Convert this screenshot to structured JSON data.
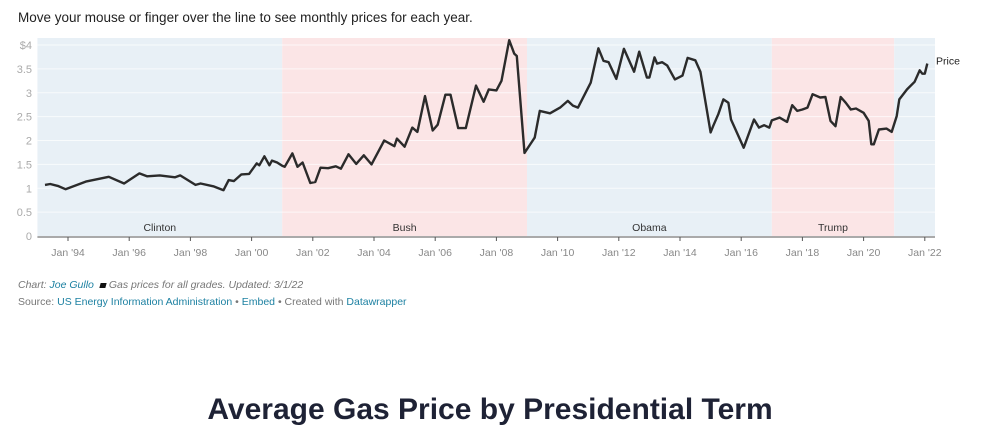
{
  "intro": "Move your mouse or finger over the line to see monthly prices for each year.",
  "notes": {
    "chart_prefix": "Chart:",
    "author": "Joe Gullo",
    "legend_note": "Gas prices for all grades. Updated: 3/1/22",
    "source_prefix": "Source:",
    "source": "US Energy Information Administration",
    "sep": "•",
    "embed": "Embed",
    "created_with": "Created with",
    "tool": "Datawrapper"
  },
  "heading": "Average Gas Price by Presidential Term",
  "colors": {
    "line": "#2b2b2b",
    "democrat_band": "#e8f0f6",
    "republican_band": "#fbe5e6",
    "link": "#1d81a2"
  },
  "chart_data": {
    "type": "line",
    "series": [
      {
        "name": "Price",
        "points": [
          [
            "1993-04",
            1.07
          ],
          [
            "1993-06",
            1.09
          ],
          [
            "1993-09",
            1.05
          ],
          [
            "1993-12",
            0.98
          ],
          [
            "1994-08",
            1.14
          ],
          [
            "1995-05",
            1.24
          ],
          [
            "1995-11",
            1.1
          ],
          [
            "1996-05",
            1.31
          ],
          [
            "1996-08",
            1.25
          ],
          [
            "1997-01",
            1.27
          ],
          [
            "1997-07",
            1.23
          ],
          [
            "1997-09",
            1.27
          ],
          [
            "1998-03",
            1.07
          ],
          [
            "1998-05",
            1.1
          ],
          [
            "1998-10",
            1.04
          ],
          [
            "1999-02",
            0.96
          ],
          [
            "1999-04",
            1.17
          ],
          [
            "1999-06",
            1.15
          ],
          [
            "1999-09",
            1.29
          ],
          [
            "1999-12",
            1.3
          ],
          [
            "2000-03",
            1.52
          ],
          [
            "2000-04",
            1.48
          ],
          [
            "2000-06",
            1.67
          ],
          [
            "2000-08",
            1.48
          ],
          [
            "2000-09",
            1.58
          ],
          [
            "2000-11",
            1.54
          ],
          [
            "2001-01",
            1.47
          ],
          [
            "2001-02",
            1.45
          ],
          [
            "2001-05",
            1.73
          ],
          [
            "2001-07",
            1.45
          ],
          [
            "2001-09",
            1.54
          ],
          [
            "2001-12",
            1.11
          ],
          [
            "2002-02",
            1.13
          ],
          [
            "2002-04",
            1.43
          ],
          [
            "2002-07",
            1.42
          ],
          [
            "2002-10",
            1.46
          ],
          [
            "2002-12",
            1.41
          ],
          [
            "2003-03",
            1.71
          ],
          [
            "2003-06",
            1.51
          ],
          [
            "2003-09",
            1.69
          ],
          [
            "2003-12",
            1.5
          ],
          [
            "2004-05",
            2.0
          ],
          [
            "2004-09",
            1.88
          ],
          [
            "2004-10",
            2.04
          ],
          [
            "2005-01",
            1.87
          ],
          [
            "2005-04",
            2.27
          ],
          [
            "2005-06",
            2.18
          ],
          [
            "2005-09",
            2.93
          ],
          [
            "2005-12",
            2.21
          ],
          [
            "2006-02",
            2.33
          ],
          [
            "2006-05",
            2.96
          ],
          [
            "2006-07",
            2.96
          ],
          [
            "2006-10",
            2.26
          ],
          [
            "2007-01",
            2.26
          ],
          [
            "2007-05",
            3.15
          ],
          [
            "2007-08",
            2.81
          ],
          [
            "2007-10",
            3.07
          ],
          [
            "2008-01",
            3.05
          ],
          [
            "2008-03",
            3.25
          ],
          [
            "2008-06",
            4.1
          ],
          [
            "2008-08",
            3.82
          ],
          [
            "2008-09",
            3.77
          ],
          [
            "2008-12",
            1.74
          ],
          [
            "2009-03",
            1.98
          ],
          [
            "2009-04",
            2.06
          ],
          [
            "2009-06",
            2.62
          ],
          [
            "2009-10",
            2.57
          ],
          [
            "2010-02",
            2.69
          ],
          [
            "2010-05",
            2.83
          ],
          [
            "2010-07",
            2.73
          ],
          [
            "2010-09",
            2.69
          ],
          [
            "2011-02",
            3.21
          ],
          [
            "2011-05",
            3.93
          ],
          [
            "2011-07",
            3.67
          ],
          [
            "2011-09",
            3.64
          ],
          [
            "2011-12",
            3.29
          ],
          [
            "2012-03",
            3.92
          ],
          [
            "2012-07",
            3.44
          ],
          [
            "2012-09",
            3.86
          ],
          [
            "2012-12",
            3.32
          ],
          [
            "2013-01",
            3.32
          ],
          [
            "2013-03",
            3.74
          ],
          [
            "2013-04",
            3.61
          ],
          [
            "2013-06",
            3.64
          ],
          [
            "2013-08",
            3.57
          ],
          [
            "2013-11",
            3.28
          ],
          [
            "2014-02",
            3.36
          ],
          [
            "2014-04",
            3.73
          ],
          [
            "2014-07",
            3.68
          ],
          [
            "2014-09",
            3.44
          ],
          [
            "2015-01",
            2.17
          ],
          [
            "2015-02",
            2.3
          ],
          [
            "2015-04",
            2.55
          ],
          [
            "2015-06",
            2.86
          ],
          [
            "2015-08",
            2.79
          ],
          [
            "2015-09",
            2.44
          ],
          [
            "2016-02",
            1.85
          ],
          [
            "2016-06",
            2.44
          ],
          [
            "2016-08",
            2.27
          ],
          [
            "2016-10",
            2.32
          ],
          [
            "2016-12",
            2.27
          ],
          [
            "2017-01",
            2.42
          ],
          [
            "2017-04",
            2.48
          ],
          [
            "2017-07",
            2.39
          ],
          [
            "2017-09",
            2.74
          ],
          [
            "2017-11",
            2.62
          ],
          [
            "2018-01",
            2.65
          ],
          [
            "2018-03",
            2.69
          ],
          [
            "2018-05",
            2.97
          ],
          [
            "2018-08",
            2.9
          ],
          [
            "2018-10",
            2.91
          ],
          [
            "2018-12",
            2.41
          ],
          [
            "2019-02",
            2.3
          ],
          [
            "2019-04",
            2.91
          ],
          [
            "2019-06",
            2.79
          ],
          [
            "2019-08",
            2.65
          ],
          [
            "2019-10",
            2.67
          ],
          [
            "2020-01",
            2.58
          ],
          [
            "2020-03",
            2.41
          ],
          [
            "2020-04",
            1.92
          ],
          [
            "2020-05",
            1.92
          ],
          [
            "2020-07",
            2.23
          ],
          [
            "2020-10",
            2.25
          ],
          [
            "2020-12",
            2.18
          ],
          [
            "2021-02",
            2.51
          ],
          [
            "2021-03",
            2.86
          ],
          [
            "2021-06",
            3.07
          ],
          [
            "2021-09",
            3.23
          ],
          [
            "2021-11",
            3.47
          ],
          [
            "2021-12",
            3.4
          ],
          [
            "2022-01",
            3.4
          ],
          [
            "2022-02",
            3.61
          ]
        ]
      }
    ],
    "xlim": [
      "1993-01",
      "2022-05"
    ],
    "ylim": [
      0,
      4
    ],
    "yticks": [
      {
        "v": 0,
        "label": "0"
      },
      {
        "v": 0.5,
        "label": "0.5"
      },
      {
        "v": 1,
        "label": "1"
      },
      {
        "v": 1.5,
        "label": "1.5"
      },
      {
        "v": 2,
        "label": "2"
      },
      {
        "v": 2.5,
        "label": "2.5"
      },
      {
        "v": 3,
        "label": "3"
      },
      {
        "v": 3.5,
        "label": "3.5"
      },
      {
        "v": 4,
        "label": "$4"
      }
    ],
    "xticks": [
      {
        "v": "1994-01",
        "label": "Jan '94"
      },
      {
        "v": "1996-01",
        "label": "Jan '96"
      },
      {
        "v": "1998-01",
        "label": "Jan '98"
      },
      {
        "v": "2000-01",
        "label": "Jan '00"
      },
      {
        "v": "2002-01",
        "label": "Jan '02"
      },
      {
        "v": "2004-01",
        "label": "Jan '04"
      },
      {
        "v": "2006-01",
        "label": "Jan '06"
      },
      {
        "v": "2008-01",
        "label": "Jan '08"
      },
      {
        "v": "2010-01",
        "label": "Jan '10"
      },
      {
        "v": "2012-01",
        "label": "Jan '12"
      },
      {
        "v": "2014-01",
        "label": "Jan '14"
      },
      {
        "v": "2016-01",
        "label": "Jan '16"
      },
      {
        "v": "2018-01",
        "label": "Jan '18"
      },
      {
        "v": "2020-01",
        "label": "Jan '20"
      },
      {
        "v": "2022-01",
        "label": "Jan '22"
      }
    ],
    "bands": [
      {
        "label": "Clinton",
        "start": "1993-01",
        "end": "2001-01",
        "party": "democrat"
      },
      {
        "label": "Bush",
        "start": "2001-01",
        "end": "2009-01",
        "party": "republican"
      },
      {
        "label": "Obama",
        "start": "2009-01",
        "end": "2017-01",
        "party": "democrat"
      },
      {
        "label": "Trump",
        "start": "2017-01",
        "end": "2021-01",
        "party": "republican"
      },
      {
        "label": "",
        "start": "2021-01",
        "end": "2022-05",
        "party": "democrat"
      }
    ],
    "grid": true,
    "series_label_position": "line-end"
  }
}
